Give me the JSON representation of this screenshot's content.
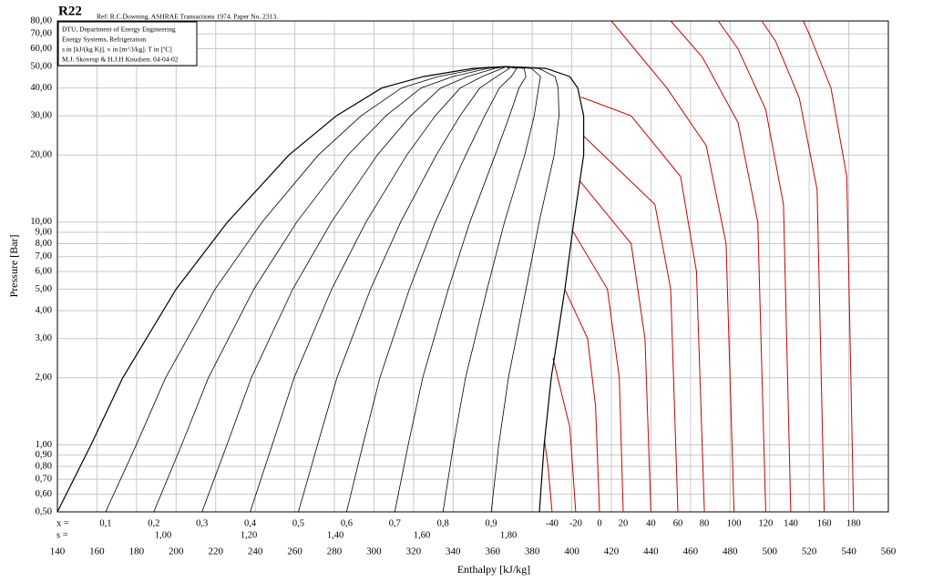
{
  "chart_data": {
    "type": "line",
    "title": "R22",
    "subtitle": "Ref: R.C.Downing. ASHRAE Transactions 1974. Paper No. 2313.",
    "annotations": [
      "DTU, Department of Energy Engineering",
      "Energy Systems, Refrigeration",
      "s in [kJ/(kg K)]. v in [m^3/kg]. T in [ºC]",
      "M.J. Skovrup & H.J.H Knudsen. 04-04-02"
    ],
    "xlabel": "Enthalpy [kJ/kg]",
    "ylabel": "Pressure [Bar]",
    "xlim": [
      140,
      560
    ],
    "ylim": [
      0.5,
      80
    ],
    "yscale": "log",
    "grid": true,
    "xticks": [
      140,
      160,
      180,
      200,
      220,
      240,
      260,
      280,
      300,
      320,
      340,
      360,
      380,
      400,
      420,
      440,
      460,
      480,
      500,
      520,
      540,
      560
    ],
    "yticks": [
      {
        "value": 80,
        "label": "80,00"
      },
      {
        "value": 70,
        "label": "70,00"
      },
      {
        "value": 60,
        "label": "60,00"
      },
      {
        "value": 50,
        "label": "50,00"
      },
      {
        "value": 40,
        "label": "40,00"
      },
      {
        "value": 30,
        "label": "30,00"
      },
      {
        "value": 20,
        "label": "20,00"
      },
      {
        "value": 10,
        "label": "10,00"
      },
      {
        "value": 9,
        "label": "9,00"
      },
      {
        "value": 8,
        "label": "8,00"
      },
      {
        "value": 7,
        "label": "7,00"
      },
      {
        "value": 6,
        "label": "6,00"
      },
      {
        "value": 5,
        "label": "5,00"
      },
      {
        "value": 4,
        "label": "4,00"
      },
      {
        "value": 3,
        "label": "3,00"
      },
      {
        "value": 2,
        "label": "2,00"
      },
      {
        "value": 1,
        "label": "1,00"
      },
      {
        "value": 0.9,
        "label": "0,90"
      },
      {
        "value": 0.8,
        "label": "0,80"
      },
      {
        "value": 0.7,
        "label": "0,70"
      },
      {
        "value": 0.6,
        "label": "0,60"
      },
      {
        "value": 0.5,
        "label": "0,50"
      }
    ],
    "dome": [
      {
        "color": "#000000",
        "x": [
          140,
          157,
          173,
          200,
          226,
          257,
          281,
          304,
          325,
          350,
          366.6
        ],
        "values": [
          0.5,
          1,
          2,
          5,
          10,
          20,
          30,
          40,
          45,
          49,
          49.9
        ]
      },
      {
        "color": "#000000",
        "x": [
          383.6,
          386,
          389.6,
          396.5,
          401,
          406,
          406,
          403,
          399,
          387,
          366.6
        ],
        "values": [
          0.5,
          1,
          2,
          5,
          10,
          20,
          30,
          40,
          45,
          49,
          49.9
        ]
      }
    ],
    "quality": {
      "label": "x =",
      "color": "#000000",
      "values": [
        {
          "value": 0.1,
          "label": "0,1"
        },
        {
          "value": 0.2,
          "label": "0,2"
        },
        {
          "value": 0.3,
          "label": "0,3"
        },
        {
          "value": 0.4,
          "label": "0,4"
        },
        {
          "value": 0.5,
          "label": "0,5"
        },
        {
          "value": 0.6,
          "label": "0,6"
        },
        {
          "value": 0.7,
          "label": "0,7"
        },
        {
          "value": 0.8,
          "label": "0,8"
        },
        {
          "value": 0.9,
          "label": "0,9"
        }
      ]
    },
    "entropy": {
      "label": "s =",
      "color": "#0000cc",
      "values": [
        {
          "value": 1.0,
          "label": "1,00"
        },
        {
          "value": 1.2,
          "label": "1,20"
        },
        {
          "value": 1.4,
          "label": "1,40"
        },
        {
          "value": 1.6,
          "label": "1,60"
        },
        {
          "value": 1.8,
          "label": "1,80"
        }
      ]
    },
    "series": [
      {
        "name": "-40",
        "color": "#cc0000",
        "x": [
          390,
          388,
          386.2
        ],
        "values": [
          0.5,
          0.8,
          1.05
        ]
      },
      {
        "name": "-20",
        "color": "#cc0000",
        "x": [
          402,
          399,
          390.5
        ],
        "values": [
          0.5,
          1.2,
          2.45
        ]
      },
      {
        "name": "0",
        "color": "#cc0000",
        "x": [
          414,
          412,
          408,
          396.5
        ],
        "values": [
          0.5,
          1.5,
          3,
          4.98
        ]
      },
      {
        "name": "20",
        "color": "#cc0000",
        "x": [
          426,
          424,
          418,
          400.5
        ],
        "values": [
          0.5,
          2,
          5,
          9.1
        ]
      },
      {
        "name": "40",
        "color": "#cc0000",
        "x": [
          440,
          437,
          430,
          404
        ],
        "values": [
          0.5,
          3,
          8,
          15.3
        ]
      },
      {
        "name": "60",
        "color": "#cc0000",
        "x": [
          453.6,
          450,
          442,
          406
        ],
        "values": [
          0.5,
          5,
          12,
          24.3
        ]
      },
      {
        "name": "80",
        "color": "#cc0000",
        "x": [
          467,
          463,
          455,
          430,
          404.7
        ],
        "values": [
          0.5,
          6,
          16,
          30,
          36.4
        ]
      },
      {
        "name": "100",
        "color": "#cc0000",
        "x": [
          482,
          478,
          468,
          448,
          420
        ],
        "values": [
          0.5,
          8,
          22,
          40,
          80
        ]
      },
      {
        "name": "120",
        "color": "#cc0000",
        "x": [
          498,
          494,
          484,
          466,
          450
        ],
        "values": [
          0.5,
          10,
          28,
          55,
          80
        ]
      },
      {
        "name": "140",
        "color": "#cc0000",
        "x": [
          510.7,
          507,
          498,
          484,
          474
        ],
        "values": [
          0.5,
          12,
          32,
          60,
          80
        ]
      },
      {
        "name": "160",
        "color": "#cc0000",
        "x": [
          527.6,
          524,
          515,
          503,
          496
        ],
        "values": [
          0.5,
          14,
          36,
          65,
          80
        ]
      },
      {
        "name": "180",
        "color": "#cc0000",
        "x": [
          542.4,
          539,
          531,
          520,
          517
        ],
        "values": [
          0.5,
          16,
          40,
          70,
          80
        ]
      }
    ]
  }
}
